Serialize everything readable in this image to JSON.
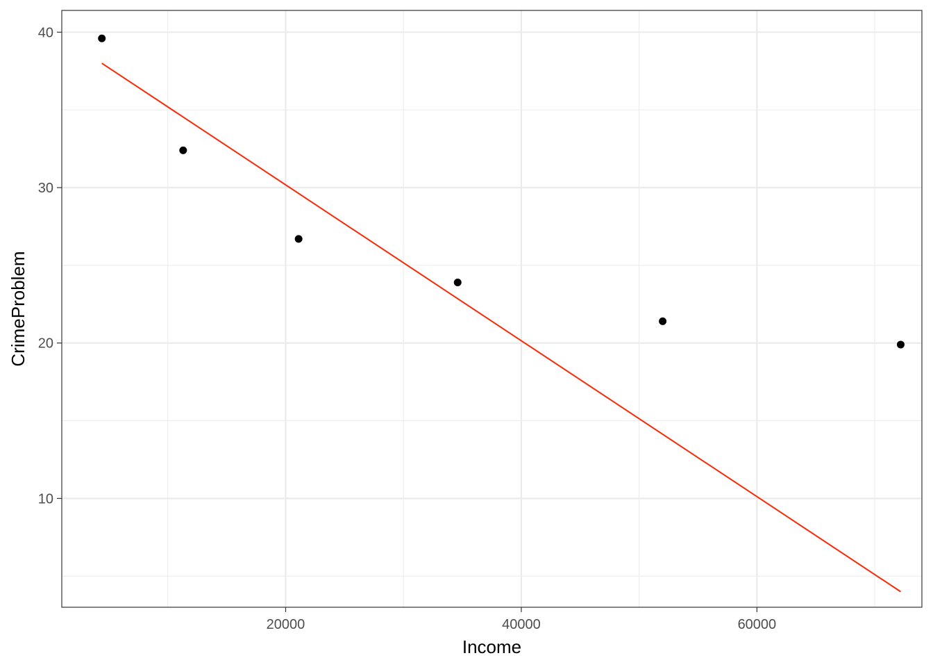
{
  "chart_data": {
    "type": "scatter",
    "title": "",
    "xlabel": "Income",
    "ylabel": "CrimeProblem",
    "xlim": [
      1000,
      74000
    ],
    "ylim": [
      3.0,
      41.4
    ],
    "x_ticks": [
      20000,
      40000,
      60000
    ],
    "x_minor_ticks": [
      10000,
      30000,
      50000,
      70000
    ],
    "y_ticks": [
      10,
      20,
      30,
      40
    ],
    "y_minor_ticks": [
      5,
      15,
      25,
      35
    ],
    "grid": true,
    "points": [
      {
        "x": 4400,
        "y": 39.6
      },
      {
        "x": 11300,
        "y": 32.4
      },
      {
        "x": 21100,
        "y": 26.7
      },
      {
        "x": 34600,
        "y": 23.9
      },
      {
        "x": 52000,
        "y": 21.4
      },
      {
        "x": 72200,
        "y": 19.9
      }
    ],
    "fit_line": {
      "x": [
        4400,
        72200
      ],
      "y": [
        38.0,
        4.0
      ]
    },
    "colors": {
      "points": "#000000",
      "fit_line": "#ff2600",
      "grid": "#ebebeb",
      "panel_border": "#333333"
    }
  }
}
